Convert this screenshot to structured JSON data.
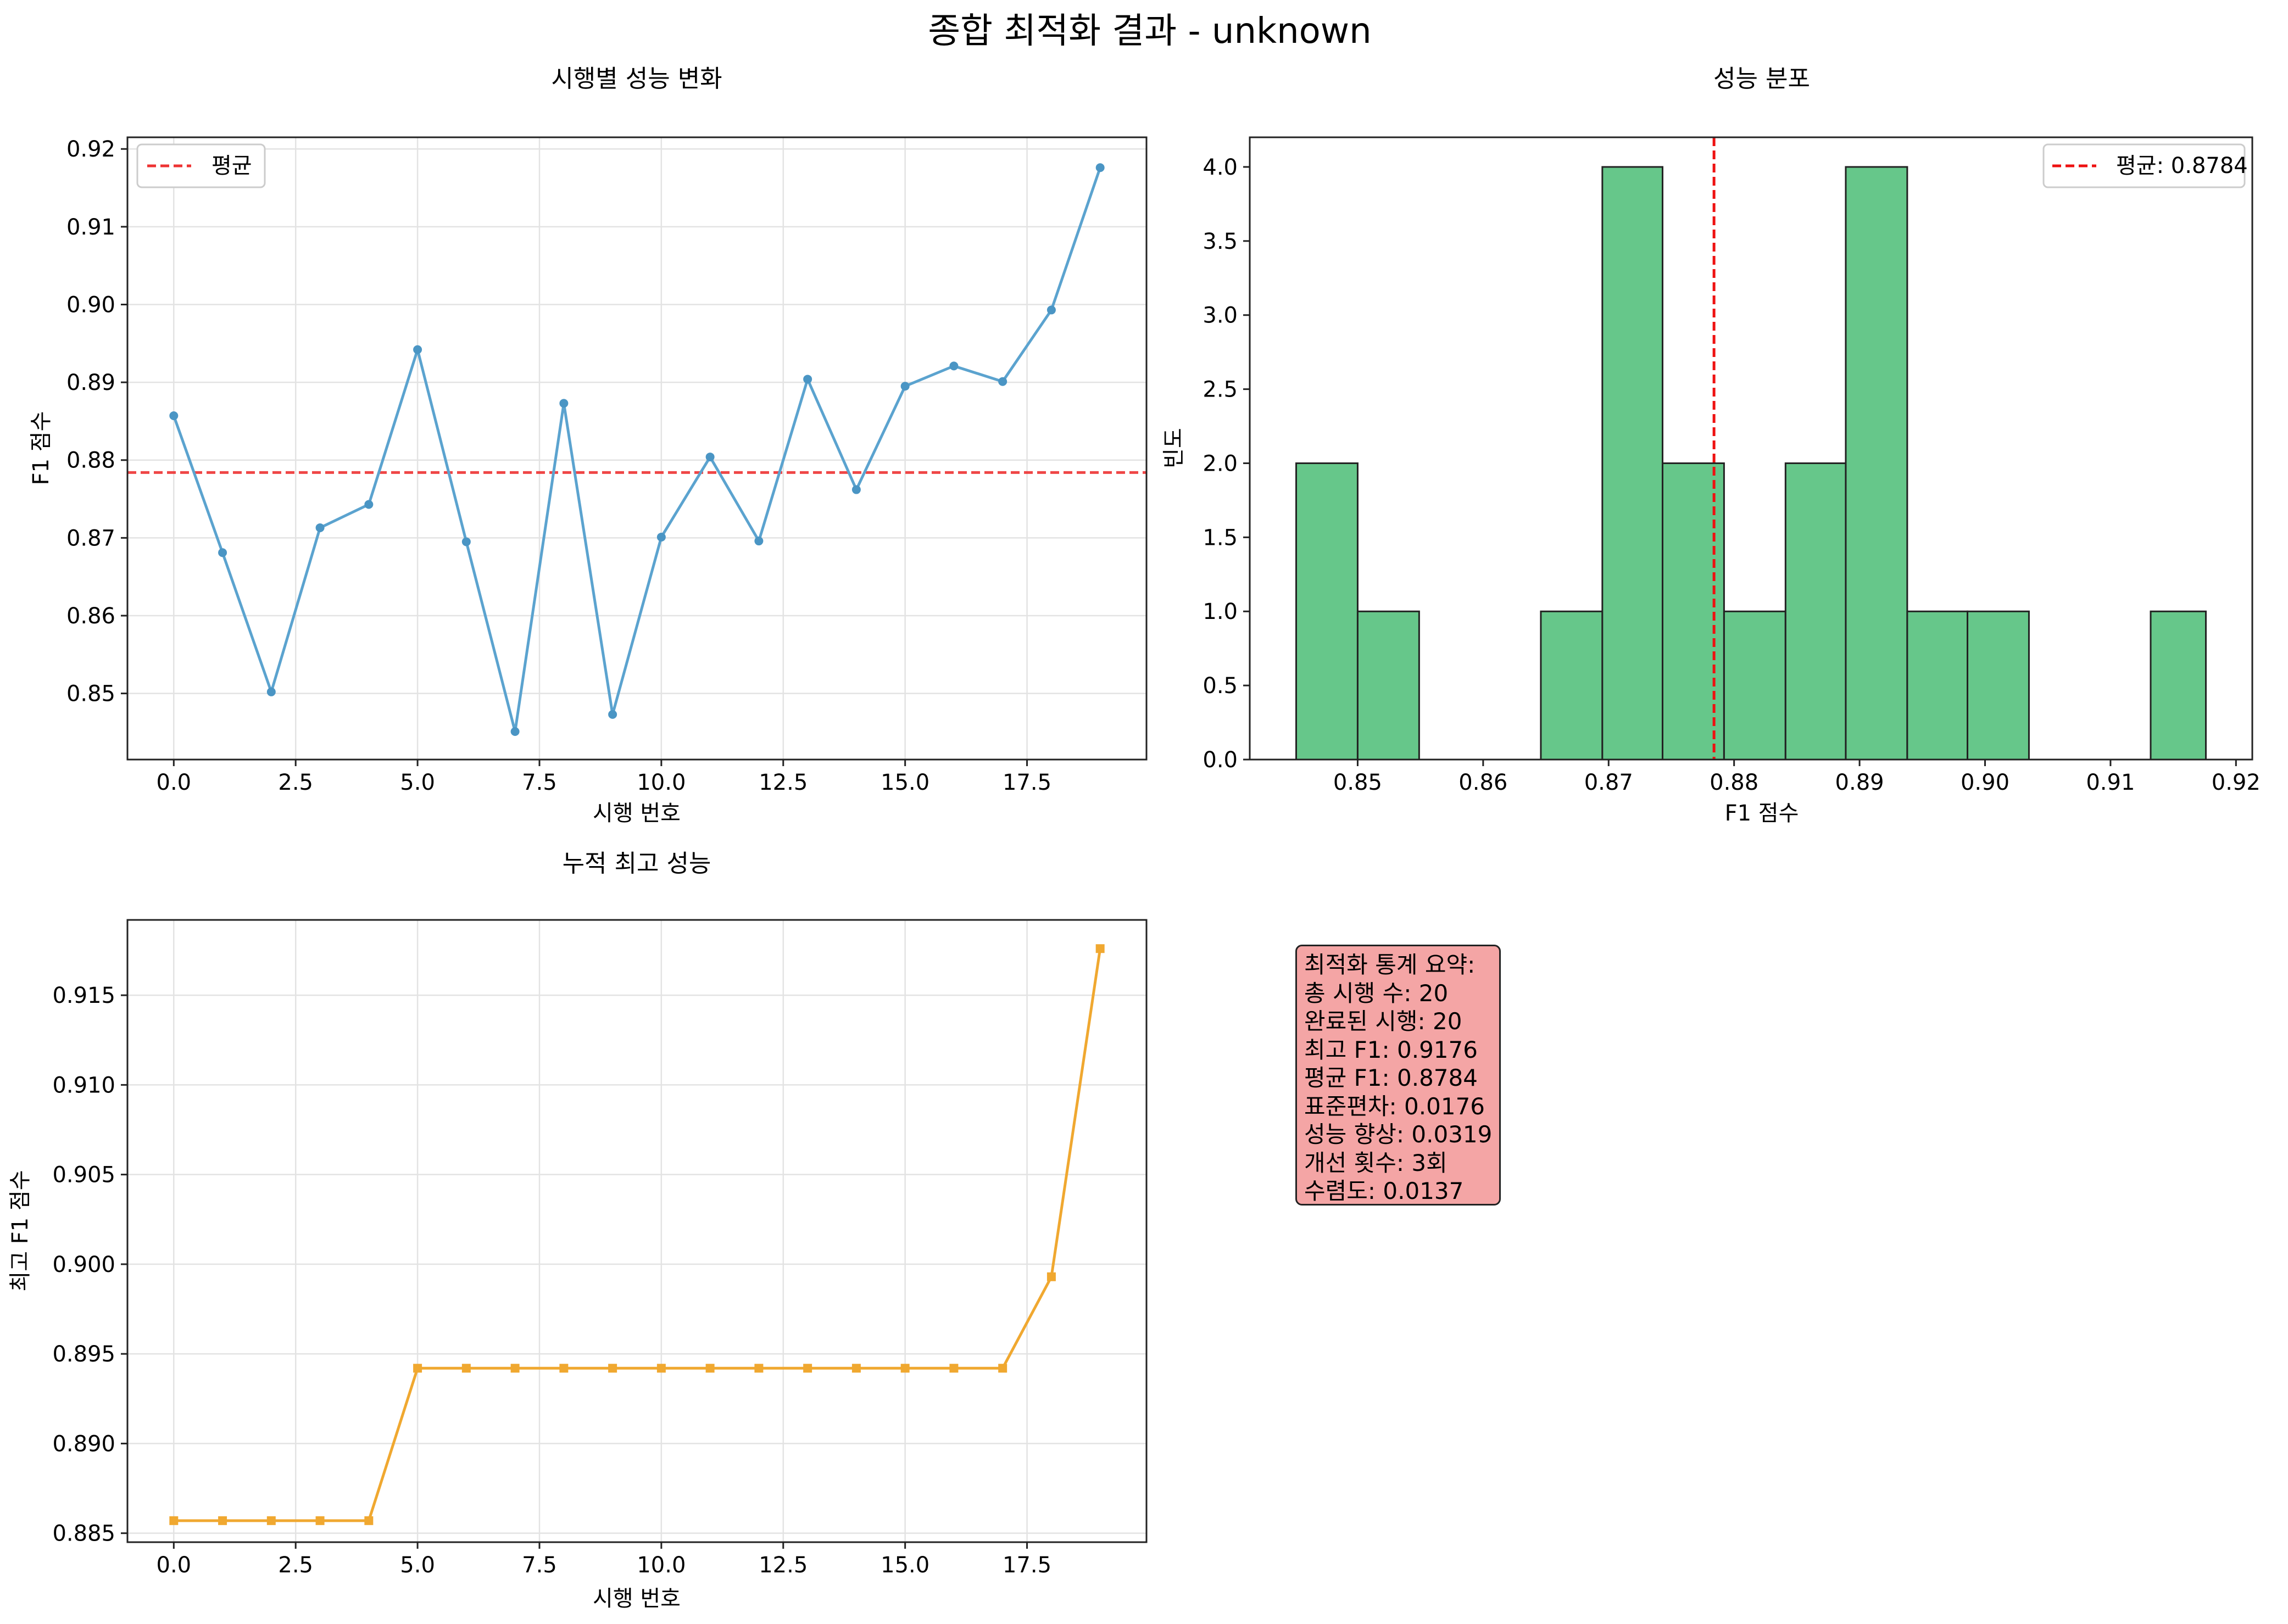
{
  "figure": {
    "suptitle": "종합 최적화 결과 - unknown"
  },
  "chart_data": [
    {
      "id": "trial-performance",
      "type": "line",
      "title": "시행별 성능 변화",
      "xlabel": "시행 번호",
      "ylabel": "F1 점수",
      "xlim": [
        -0.95,
        19.95
      ],
      "ylim": [
        0.8415,
        0.9215
      ],
      "xticks": [
        0,
        2.5,
        5,
        7.5,
        10,
        12.5,
        15,
        17.5
      ],
      "xtick_labels": [
        "0.0",
        "2.5",
        "5.0",
        "7.5",
        "10.0",
        "12.5",
        "15.0",
        "17.5"
      ],
      "yticks": [
        0.85,
        0.86,
        0.87,
        0.88,
        0.89,
        0.9,
        0.91,
        0.92
      ],
      "ytick_labels": [
        "0.85",
        "0.86",
        "0.87",
        "0.88",
        "0.89",
        "0.90",
        "0.91",
        "0.92"
      ],
      "grid": true,
      "legend_position": "top-left",
      "series": [
        {
          "color": "#5ba3cf",
          "marker": "circle",
          "x": [
            0,
            1,
            2,
            3,
            4,
            5,
            6,
            7,
            8,
            9,
            10,
            11,
            12,
            13,
            14,
            15,
            16,
            17,
            18,
            19
          ],
          "y": [
            0.8857,
            0.8681,
            0.8502,
            0.8713,
            0.8743,
            0.8942,
            0.8695,
            0.8451,
            0.8873,
            0.8473,
            0.8701,
            0.8804,
            0.8696,
            0.8904,
            0.8762,
            0.8895,
            0.8921,
            0.8901,
            0.8993,
            0.9176
          ]
        }
      ],
      "hline": {
        "y": 0.8784,
        "name": "평균",
        "color": "#ee3333",
        "style": "dashed"
      }
    },
    {
      "id": "performance-distribution",
      "type": "histogram",
      "title": "성능 분포",
      "xlabel": "F1 점수",
      "ylabel": "빈도",
      "xlim": [
        0.8414,
        0.9213
      ],
      "ylim": [
        0,
        4.2
      ],
      "xticks": [
        0.85,
        0.86,
        0.87,
        0.88,
        0.89,
        0.9,
        0.91,
        0.92
      ],
      "xtick_labels": [
        "0.85",
        "0.86",
        "0.87",
        "0.88",
        "0.89",
        "0.90",
        "0.91",
        "0.92"
      ],
      "yticks": [
        0,
        0.5,
        1,
        1.5,
        2,
        2.5,
        3,
        3.5,
        4
      ],
      "ytick_labels": [
        "0.0",
        "0.5",
        "1.0",
        "1.5",
        "2.0",
        "2.5",
        "3.0",
        "3.5",
        "4.0"
      ],
      "grid": false,
      "legend_position": "top-right",
      "bar_color": "#66c78a",
      "edge_color": "#222222",
      "bin_edges": [
        0.8451,
        0.85,
        0.8549,
        0.8597,
        0.8646,
        0.8695,
        0.8743,
        0.8792,
        0.8841,
        0.8889,
        0.8938,
        0.8986,
        0.9035,
        0.9083,
        0.9132,
        0.9176
      ],
      "counts": [
        2,
        1,
        0,
        0,
        1,
        4,
        2,
        1,
        2,
        4,
        1,
        1,
        0,
        0,
        1
      ],
      "vline": {
        "x": 0.8784,
        "name": "평균: 0.8784",
        "color": "#ee1111",
        "style": "dashed"
      }
    },
    {
      "id": "cumulative-best",
      "type": "line",
      "title": "누적 최고 성능",
      "xlabel": "시행 번호",
      "ylabel": "최고 F1 점수",
      "xlim": [
        -0.95,
        19.95
      ],
      "ylim": [
        0.8845,
        0.9192
      ],
      "xticks": [
        0,
        2.5,
        5,
        7.5,
        10,
        12.5,
        15,
        17.5
      ],
      "xtick_labels": [
        "0.0",
        "2.5",
        "5.0",
        "7.5",
        "10.0",
        "12.5",
        "15.0",
        "17.5"
      ],
      "yticks": [
        0.885,
        0.89,
        0.895,
        0.9,
        0.905,
        0.91,
        0.915
      ],
      "ytick_labels": [
        "0.885",
        "0.890",
        "0.895",
        "0.900",
        "0.905",
        "0.910",
        "0.915"
      ],
      "grid": true,
      "series": [
        {
          "color": "#f0a830",
          "marker": "square",
          "x": [
            0,
            1,
            2,
            3,
            4,
            5,
            6,
            7,
            8,
            9,
            10,
            11,
            12,
            13,
            14,
            15,
            16,
            17,
            18,
            19
          ],
          "y": [
            0.8857,
            0.8857,
            0.8857,
            0.8857,
            0.8857,
            0.8942,
            0.8942,
            0.8942,
            0.8942,
            0.8942,
            0.8942,
            0.8942,
            0.8942,
            0.8942,
            0.8942,
            0.8942,
            0.8942,
            0.8942,
            0.8993,
            0.9176
          ]
        }
      ]
    }
  ],
  "stats_box": {
    "lines": [
      "최적화 통계 요약:",
      "총 시행 수: 20",
      "완료된 시행: 20",
      "최고 F1: 0.9176",
      "평균 F1: 0.8784",
      "표준편차: 0.0176",
      "성능 향상: 0.0319",
      "개선 횟수: 3회",
      "수렴도: 0.0137"
    ]
  }
}
